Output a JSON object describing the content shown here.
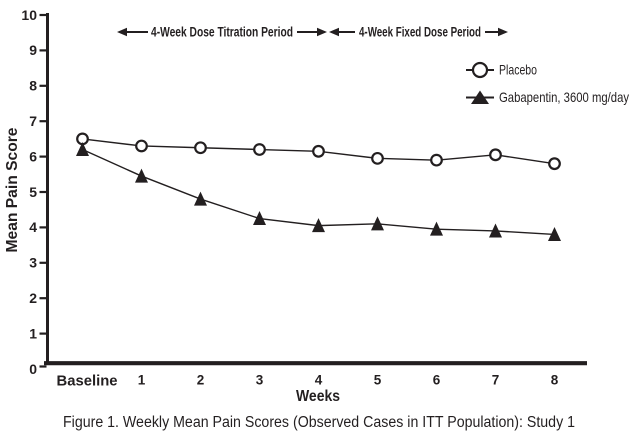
{
  "caption": "Figure 1. Weekly Mean Pain Scores (Observed Cases in ITT Population): Study 1",
  "colors": {
    "ink": "#231f20",
    "background": "#ffffff",
    "marker_fill_placebo": "#ffffff"
  },
  "chart_data": {
    "type": "line",
    "categories": [
      "Baseline",
      "1",
      "2",
      "3",
      "4",
      "5",
      "6",
      "7",
      "8"
    ],
    "series": [
      {
        "name": "Placebo",
        "marker": "circle",
        "values": [
          6.5,
          6.3,
          6.25,
          6.2,
          6.15,
          5.95,
          5.9,
          6.05,
          5.8
        ]
      },
      {
        "name": "Gabapentin, 3600 mg/day",
        "marker": "triangle-filled",
        "values": [
          6.2,
          5.45,
          4.8,
          4.25,
          4.05,
          4.1,
          3.95,
          3.9,
          3.8
        ]
      }
    ],
    "xlabel": "Weeks",
    "ylabel": "Mean Pain Score",
    "ylim": [
      0,
      10
    ],
    "yticks": [
      0,
      1,
      2,
      3,
      4,
      5,
      6,
      7,
      8,
      9,
      10
    ],
    "grid": false,
    "legend_position": "upper-right",
    "annotations": [
      {
        "text": "4-Week Dose Titration Period",
        "span_weeks": [
          0,
          4
        ],
        "arrows": "double-headed"
      },
      {
        "text": "4-Week Fixed Dose Period",
        "span_weeks": [
          4,
          8
        ],
        "arrows": "double-headed"
      }
    ]
  }
}
